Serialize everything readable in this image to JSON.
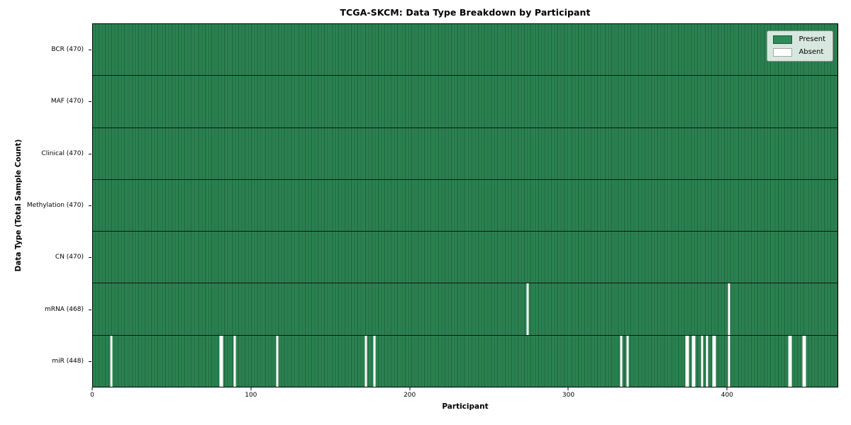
{
  "chart_data": {
    "type": "heatmap",
    "title": "TCGA-SKCM: Data Type Breakdown by Participant",
    "xlabel": "Participant",
    "ylabel": "Data Type (Total Sample Count)",
    "n_participants": 470,
    "x_ticks": [
      0,
      100,
      200,
      300,
      400
    ],
    "colors": {
      "present": "#2e8b57",
      "present_edge": "#1e5c3a",
      "absent": "#ffffff",
      "row_separator": "#141414"
    },
    "legend": {
      "position": "upper right",
      "entries": [
        {
          "label": "Present",
          "color": "#2e8b57"
        },
        {
          "label": "Absent",
          "color": "#ffffff"
        }
      ]
    },
    "rows": [
      {
        "data_type": "BCR",
        "label": "BCR (470)",
        "count": 470,
        "absent_participants": []
      },
      {
        "data_type": "MAF",
        "label": "MAF (470)",
        "count": 470,
        "absent_participants": []
      },
      {
        "data_type": "Clinical",
        "label": "Clinical (470)",
        "count": 470,
        "absent_participants": []
      },
      {
        "data_type": "Methylation",
        "label": "Methylation (470)",
        "count": 470,
        "absent_participants": []
      },
      {
        "data_type": "CN",
        "label": "CN (470)",
        "count": 470,
        "absent_participants": []
      },
      {
        "data_type": "mRNA",
        "label": "mRNA (468)",
        "count": 468,
        "absent_participants": [
          274,
          401
        ]
      },
      {
        "data_type": "miR",
        "label": "miR (448)",
        "count": 448,
        "absent_participants": [
          11,
          80,
          81,
          89,
          116,
          172,
          177,
          333,
          337,
          374,
          375,
          378,
          379,
          384,
          387,
          391,
          392,
          401,
          439,
          440,
          448,
          449
        ]
      }
    ]
  }
}
